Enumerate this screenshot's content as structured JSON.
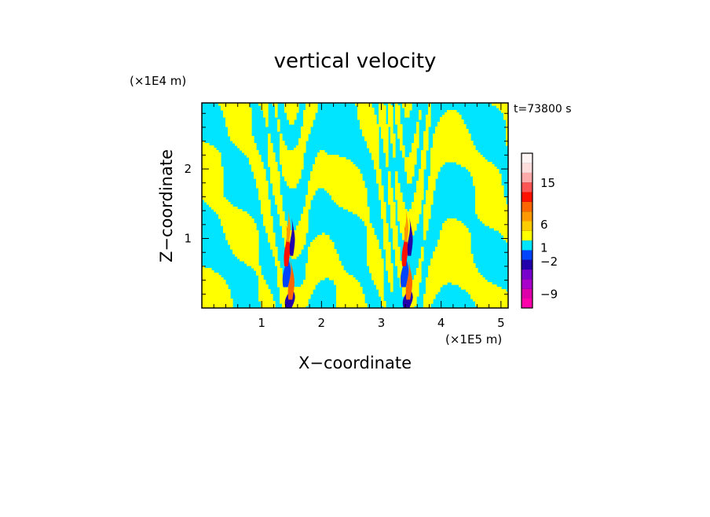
{
  "chart_data": {
    "type": "heatmap",
    "title": "vertical velocity",
    "xlabel": "X−coordinate",
    "ylabel": "Z−coordinate",
    "x_unit": "(×1E5 m)",
    "y_unit": "(×1E4 m)",
    "time_label": "t=73800 s",
    "xlim": [
      0,
      5.12
    ],
    "ylim": [
      0,
      2.95
    ],
    "x_ticks": [
      "1",
      "2",
      "3",
      "4",
      "5"
    ],
    "y_ticks": [
      "1",
      "2"
    ],
    "x_tick_values": [
      1,
      2,
      3,
      4,
      5
    ],
    "y_tick_values": [
      1,
      2
    ],
    "mountains_x": [
      1.45,
      3.42
    ],
    "colorbar": {
      "colors": [
        "#ff00aa",
        "#dd00aa",
        "#aa00cc",
        "#7700cc",
        "#2200aa",
        "#0044ff",
        "#00e5ff",
        "#ffff00",
        "#ffcc00",
        "#ff9900",
        "#ff6600",
        "#ff1100",
        "#ff5555",
        "#ffaaaa",
        "#ffdddd",
        "#fff4f4"
      ],
      "labels": [
        "15",
        "6",
        "1",
        "−2",
        "−9"
      ],
      "label_levels": [
        15,
        6,
        1,
        -2,
        -9
      ]
    }
  }
}
